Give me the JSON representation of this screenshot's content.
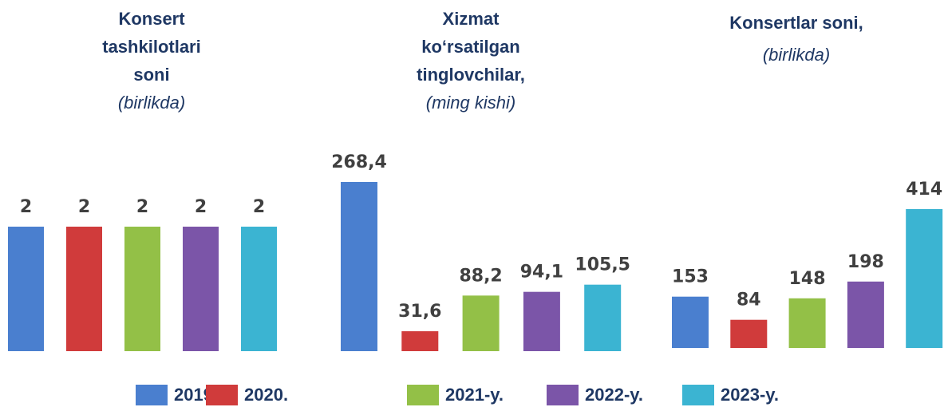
{
  "legend": [
    {
      "label": "2019-y.",
      "color": "#4a7fcf"
    },
    {
      "label": "2020.",
      "color": "#d03b3b"
    },
    {
      "label": "2021-y.",
      "color": "#93c047"
    },
    {
      "label": "2022-y.",
      "color": "#7b55a8"
    },
    {
      "label": "2023-y.",
      "color": "#3bb4d2"
    }
  ],
  "chart_data": [
    {
      "type": "bar",
      "title": [
        "Konsert",
        "tashkilotlari",
        "soni"
      ],
      "subtitle": "(birlikda)",
      "values": [
        2,
        2,
        2,
        2,
        2
      ]
    },
    {
      "type": "bar",
      "title": [
        "Xizmat",
        "ko‘rsatilgan",
        "tinglovchilar,"
      ],
      "subtitle": "(ming kishi)",
      "values": [
        268.4,
        31.6,
        88.2,
        94.1,
        105.5
      ],
      "value_labels": [
        "268,4",
        "31,6",
        "88,2",
        "94,1",
        "105,5"
      ]
    },
    {
      "type": "bar",
      "title": [
        "Konsertlar soni,"
      ],
      "subtitle": "(birlikda)",
      "values": [
        153,
        84,
        148,
        198,
        414
      ]
    }
  ]
}
